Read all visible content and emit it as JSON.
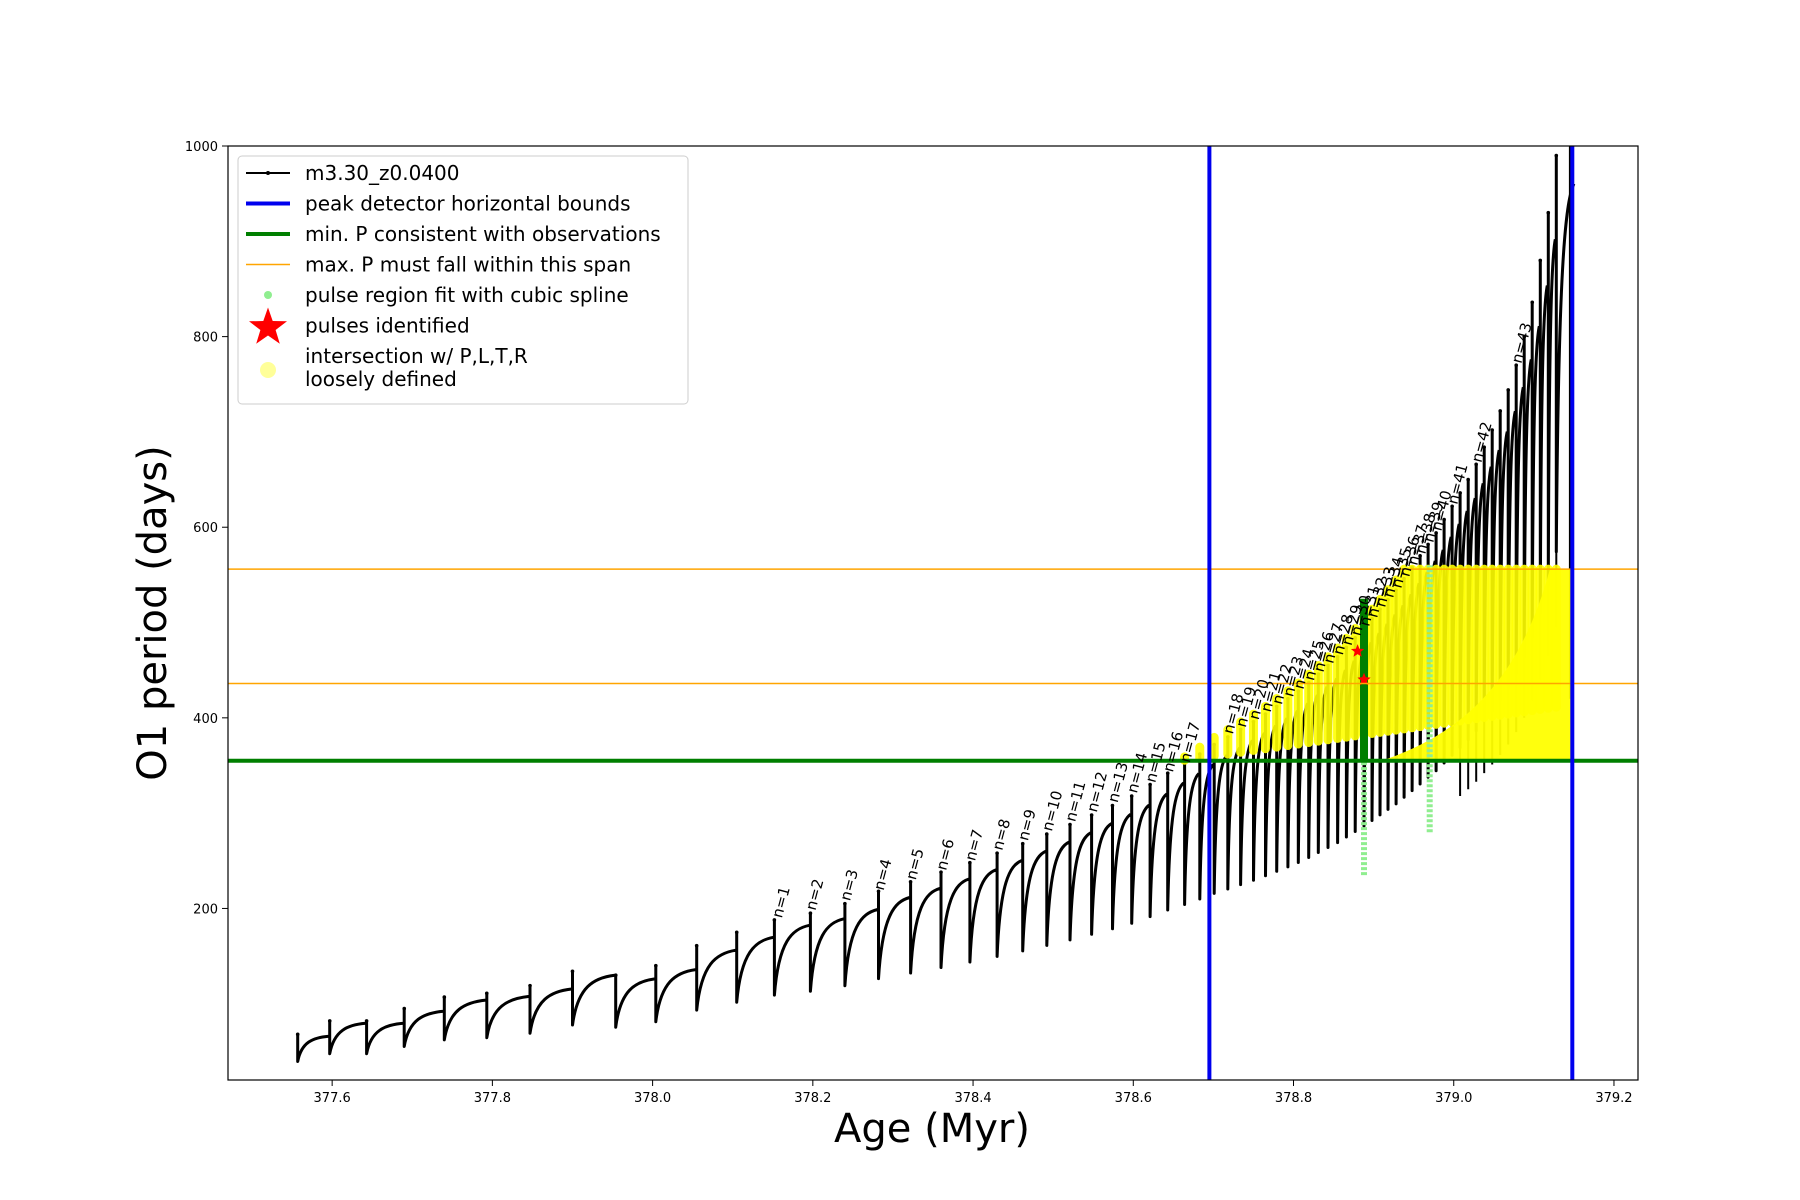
{
  "chart_data": {
    "type": "line",
    "xlabel": "Age (Myr)",
    "ylabel": "O1 period (days)",
    "xlim": [
      377.47,
      379.23
    ],
    "ylim": [
      20,
      1000
    ],
    "xticks": [
      "377.6",
      "377.8",
      "378.0",
      "378.2",
      "378.4",
      "378.6",
      "378.8",
      "379.0",
      "379.2"
    ],
    "yticks": [
      "200",
      "400",
      "600",
      "800",
      "1000"
    ],
    "legend_position": "top-left",
    "legend": [
      {
        "label": "m3.30_z0.0400",
        "style": "line-dot",
        "color": "#000000"
      },
      {
        "label": "peak detector horizontal bounds",
        "style": "thick-line",
        "color": "#0000ee"
      },
      {
        "label": "min. P consistent with observations",
        "style": "thick-line",
        "color": "#007f00"
      },
      {
        "label": "max. P must fall within this span",
        "style": "thin-line",
        "color": "#ffa500"
      },
      {
        "label": "pulse region fit with cubic spline",
        "style": "dot",
        "color": "#90ee90"
      },
      {
        "label": "pulses identified",
        "style": "star",
        "color": "#ff0000"
      },
      {
        "label": "intersection w/ P,L,T,R",
        "label2": "loosely defined",
        "style": "circle",
        "color": "#ffff99"
      }
    ],
    "vertical_bounds": [
      378.695,
      379.148
    ],
    "min_period": 355,
    "max_period_span": [
      436,
      556
    ],
    "series": [
      {
        "name": "m3.30_z0.0400",
        "description_kind": "sawtooth pulse peaks",
        "peaks": [
          {
            "x": 377.557,
            "y": 68
          },
          {
            "x": 377.597,
            "y": 82
          },
          {
            "x": 377.643,
            "y": 82
          },
          {
            "x": 377.69,
            "y": 95
          },
          {
            "x": 377.74,
            "y": 107
          },
          {
            "x": 377.793,
            "y": 111
          },
          {
            "x": 377.847,
            "y": 119
          },
          {
            "x": 377.9,
            "y": 134
          },
          {
            "x": 377.954,
            "y": 130
          },
          {
            "x": 378.004,
            "y": 140
          },
          {
            "x": 378.055,
            "y": 161
          },
          {
            "x": 378.105,
            "y": 175
          },
          {
            "x": 378.152,
            "y": 188
          },
          {
            "x": 378.197,
            "y": 195
          },
          {
            "x": 378.24,
            "y": 205
          },
          {
            "x": 378.282,
            "y": 218
          },
          {
            "x": 378.322,
            "y": 228
          },
          {
            "x": 378.36,
            "y": 238
          },
          {
            "x": 378.396,
            "y": 248
          },
          {
            "x": 378.43,
            "y": 258
          },
          {
            "x": 378.462,
            "y": 268
          },
          {
            "x": 378.492,
            "y": 278
          },
          {
            "x": 378.521,
            "y": 288
          },
          {
            "x": 378.548,
            "y": 298
          },
          {
            "x": 378.574,
            "y": 308
          },
          {
            "x": 378.598,
            "y": 318
          },
          {
            "x": 378.621,
            "y": 330
          },
          {
            "x": 378.643,
            "y": 342
          },
          {
            "x": 378.664,
            "y": 352
          },
          {
            "x": 378.683,
            "y": 362
          },
          {
            "x": 378.701,
            "y": 372
          },
          {
            "x": 378.718,
            "y": 380
          },
          {
            "x": 378.734,
            "y": 388
          },
          {
            "x": 378.75,
            "y": 396
          },
          {
            "x": 378.765,
            "y": 404
          },
          {
            "x": 378.779,
            "y": 412
          },
          {
            "x": 378.793,
            "y": 420
          },
          {
            "x": 378.806,
            "y": 428
          },
          {
            "x": 378.819,
            "y": 437
          },
          {
            "x": 378.831,
            "y": 446
          },
          {
            "x": 378.843,
            "y": 455
          },
          {
            "x": 378.855,
            "y": 464
          },
          {
            "x": 378.866,
            "y": 474
          },
          {
            "x": 378.877,
            "y": 484
          },
          {
            "x": 378.888,
            "y": 494
          },
          {
            "x": 378.898,
            "y": 504
          },
          {
            "x": 378.908,
            "y": 514
          },
          {
            "x": 378.918,
            "y": 524
          },
          {
            "x": 378.928,
            "y": 534
          },
          {
            "x": 378.938,
            "y": 546
          },
          {
            "x": 378.948,
            "y": 558
          },
          {
            "x": 378.958,
            "y": 570
          },
          {
            "x": 378.968,
            "y": 582
          },
          {
            "x": 378.978,
            "y": 594
          },
          {
            "x": 378.988,
            "y": 608
          },
          {
            "x": 378.998,
            "y": 622
          },
          {
            "x": 379.008,
            "y": 636
          },
          {
            "x": 379.018,
            "y": 650
          },
          {
            "x": 379.028,
            "y": 666
          },
          {
            "x": 379.038,
            "y": 684
          },
          {
            "x": 379.048,
            "y": 702
          },
          {
            "x": 379.058,
            "y": 722
          },
          {
            "x": 379.068,
            "y": 744
          },
          {
            "x": 379.078,
            "y": 770
          },
          {
            "x": 379.088,
            "y": 800
          },
          {
            "x": 379.098,
            "y": 836
          },
          {
            "x": 379.108,
            "y": 880
          },
          {
            "x": 379.118,
            "y": 930
          },
          {
            "x": 379.128,
            "y": 990
          }
        ]
      }
    ],
    "pulse_labels": [
      {
        "text": "n=1",
        "x": 378.155,
        "y": 185
      },
      {
        "text": "n=2",
        "x": 378.197,
        "y": 193
      },
      {
        "text": "n=3",
        "x": 378.24,
        "y": 203
      },
      {
        "text": "n=4",
        "x": 378.282,
        "y": 214
      },
      {
        "text": "n=5",
        "x": 378.322,
        "y": 225
      },
      {
        "text": "n=6",
        "x": 378.36,
        "y": 235
      },
      {
        "text": "n=7",
        "x": 378.396,
        "y": 245
      },
      {
        "text": "n=8",
        "x": 378.43,
        "y": 256
      },
      {
        "text": "n=9",
        "x": 378.462,
        "y": 266
      },
      {
        "text": "n=10",
        "x": 378.492,
        "y": 276
      },
      {
        "text": "n=11",
        "x": 378.521,
        "y": 286
      },
      {
        "text": "n=12",
        "x": 378.548,
        "y": 296
      },
      {
        "text": "n=13",
        "x": 378.574,
        "y": 306
      },
      {
        "text": "n=14",
        "x": 378.598,
        "y": 316
      },
      {
        "text": "n=15",
        "x": 378.621,
        "y": 327
      },
      {
        "text": "n=16",
        "x": 378.643,
        "y": 338
      },
      {
        "text": "n=17",
        "x": 378.664,
        "y": 348
      },
      {
        "text": "n=18",
        "x": 378.718,
        "y": 378
      },
      {
        "text": "n=19",
        "x": 378.734,
        "y": 385
      },
      {
        "text": "n=20",
        "x": 378.75,
        "y": 393
      },
      {
        "text": "n=21",
        "x": 378.765,
        "y": 401
      },
      {
        "text": "n=22",
        "x": 378.779,
        "y": 409
      },
      {
        "text": "n=23",
        "x": 378.793,
        "y": 417
      },
      {
        "text": "n=24",
        "x": 378.806,
        "y": 425
      },
      {
        "text": "n=25",
        "x": 378.819,
        "y": 434
      },
      {
        "text": "n=26",
        "x": 378.831,
        "y": 443
      },
      {
        "text": "n=27",
        "x": 378.843,
        "y": 452
      },
      {
        "text": "n=28",
        "x": 378.855,
        "y": 461
      },
      {
        "text": "n=29",
        "x": 378.866,
        "y": 471
      },
      {
        "text": "n=30",
        "x": 378.877,
        "y": 481
      },
      {
        "text": "n=31",
        "x": 378.888,
        "y": 491
      },
      {
        "text": "n=32",
        "x": 378.898,
        "y": 500
      },
      {
        "text": "n=33",
        "x": 378.908,
        "y": 511
      },
      {
        "text": "n=34",
        "x": 378.918,
        "y": 521
      },
      {
        "text": "n=35",
        "x": 378.928,
        "y": 531
      },
      {
        "text": "n=36",
        "x": 378.938,
        "y": 543
      },
      {
        "text": "n=37",
        "x": 378.948,
        "y": 555
      },
      {
        "text": "n=38",
        "x": 378.958,
        "y": 567
      },
      {
        "text": "n=39",
        "x": 378.968,
        "y": 579
      },
      {
        "text": "n=40",
        "x": 378.978,
        "y": 591
      },
      {
        "text": "n=41",
        "x": 378.998,
        "y": 619
      },
      {
        "text": "n=42",
        "x": 379.028,
        "y": 663
      },
      {
        "text": "n=43",
        "x": 379.078,
        "y": 767
      }
    ],
    "spline_fit_regions": [
      {
        "x": 378.888,
        "y_range": [
          235,
          460
        ]
      },
      {
        "x": 378.97,
        "y_range": [
          280,
          560
        ]
      }
    ],
    "identified_pulses": [
      {
        "x": 378.88,
        "y": 470
      },
      {
        "x": 378.888,
        "y": 440
      }
    ]
  }
}
